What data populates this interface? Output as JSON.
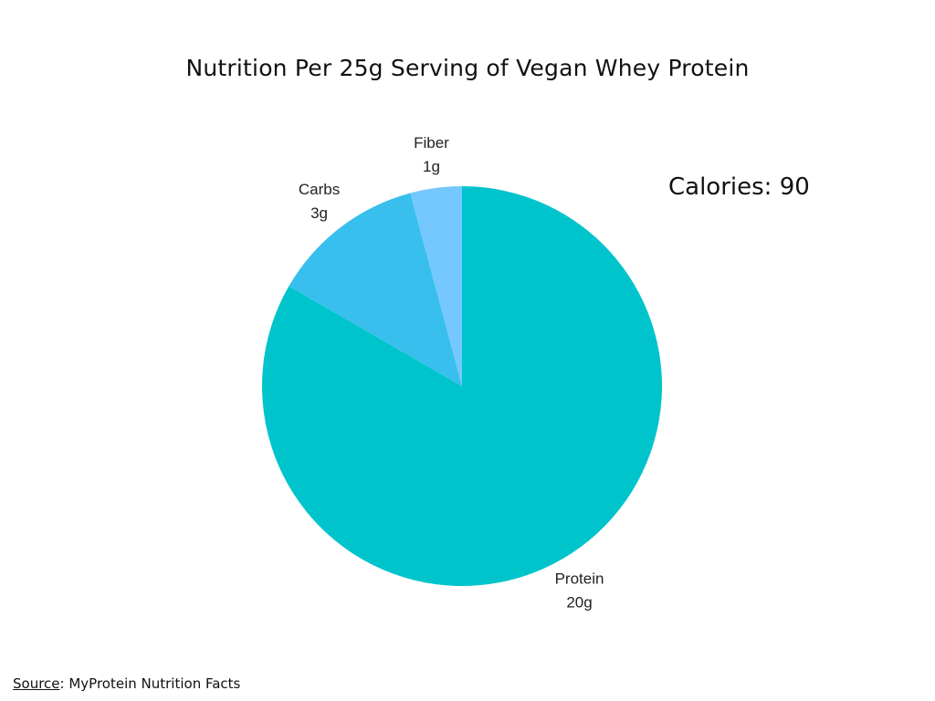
{
  "title": "Nutrition Per 25g Serving of Vegan Whey Protein",
  "calories": "Calories: 90",
  "source": {
    "label": "Source",
    "text": ": MyProtein Nutrition Facts"
  },
  "chart_data": {
    "type": "pie",
    "title": "Nutrition Per 25g Serving of Vegan Whey Protein",
    "slices": [
      {
        "label": "Protein",
        "value": 20,
        "value_label": "20g",
        "color": "#00C4CC"
      },
      {
        "label": "Carbs",
        "value": 3,
        "value_label": "3g",
        "color": "#38BFEE"
      },
      {
        "label": "Fiber",
        "value": 1,
        "value_label": "1g",
        "color": "#74C8FD"
      }
    ],
    "start": "12 o'clock",
    "direction": "clockwise",
    "legend": "none"
  }
}
